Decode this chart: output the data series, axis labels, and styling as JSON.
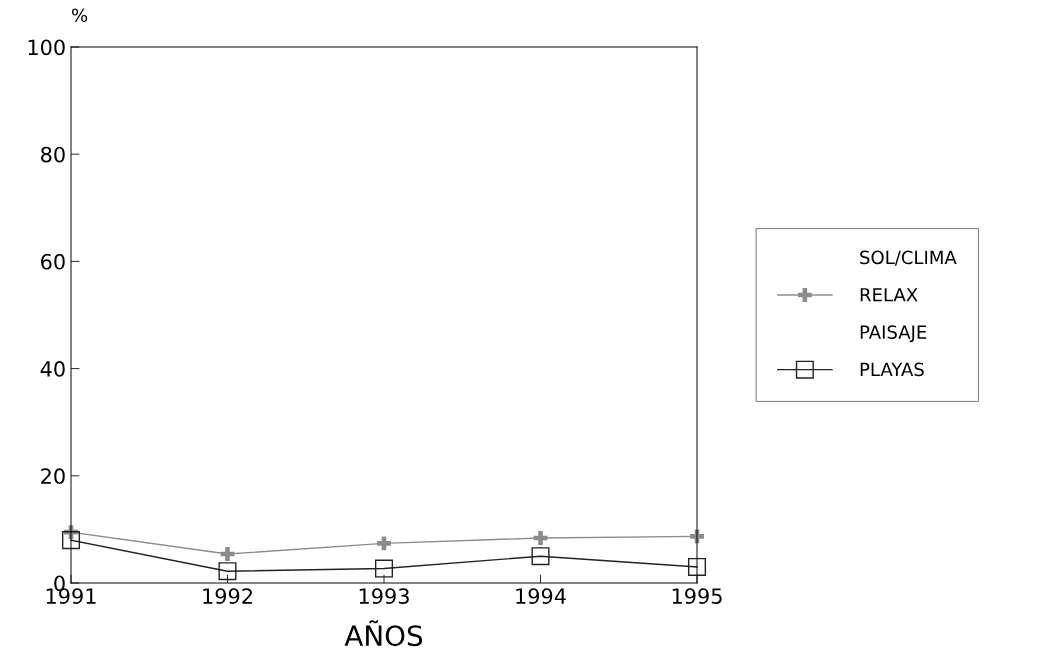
{
  "chart_data": {
    "type": "line",
    "ylabel": "%",
    "xlabel": "AÑOS",
    "x": [
      1991,
      1992,
      1993,
      1994,
      1995
    ],
    "xlim": [
      1991,
      1995
    ],
    "xticks": [
      1991,
      1992,
      1993,
      1994,
      1995
    ],
    "ylim": [
      0,
      100
    ],
    "yticks": [
      0,
      20,
      40,
      60,
      80,
      100
    ],
    "grid": false,
    "legend": "right",
    "series": [
      {
        "name": "SOL/CLIMA",
        "marker": "none",
        "values": [
          null,
          null,
          null,
          null,
          null
        ]
      },
      {
        "name": "RELAX",
        "color": "#8c8c8c",
        "marker": "cross",
        "values": [
          9.5,
          5.4,
          7.4,
          8.4,
          8.7
        ]
      },
      {
        "name": "PAISAJE",
        "marker": "none",
        "values": [
          null,
          null,
          null,
          null,
          null
        ]
      },
      {
        "name": "PLAYAS",
        "color": "#222222",
        "marker": "square",
        "values": [
          8.0,
          2.2,
          2.7,
          5.0,
          3.0
        ]
      }
    ]
  }
}
